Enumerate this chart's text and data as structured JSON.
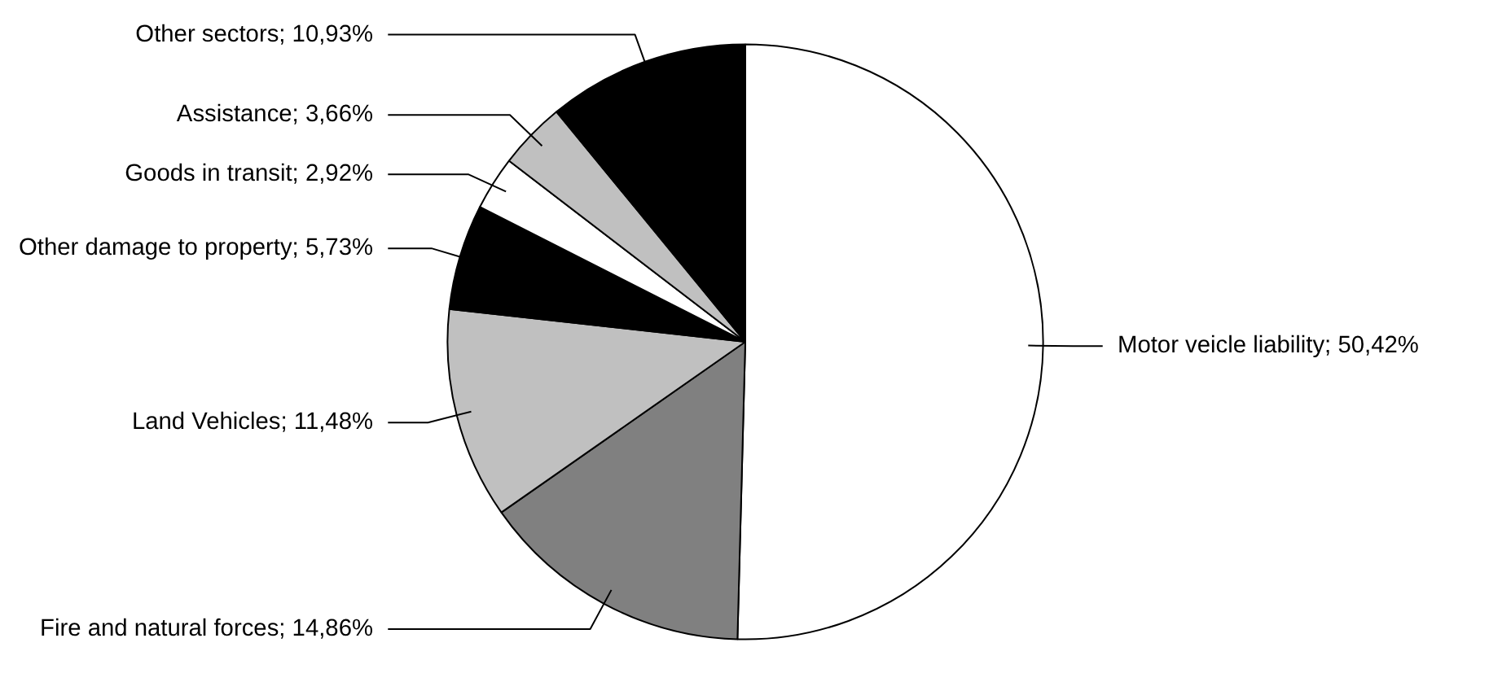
{
  "chart_data": {
    "type": "pie",
    "categories": [
      "Motor veicle liability",
      "Fire and natural forces",
      "Land Vehicles",
      "Other damage to property",
      "Goods in transit",
      "Assistance",
      "Other sectors"
    ],
    "values": [
      50.42,
      14.86,
      11.48,
      5.73,
      2.92,
      3.66,
      10.93
    ],
    "value_labels": [
      "50,42%",
      "14,86%",
      "11,48%",
      "5,73%",
      "2,92%",
      "3,66%",
      "10,93%"
    ],
    "colors": [
      "#ffffff",
      "#808080",
      "#c0c0c0",
      "#000000",
      "#ffffff",
      "#c0c0c0",
      "#000000"
    ],
    "legend": false
  }
}
